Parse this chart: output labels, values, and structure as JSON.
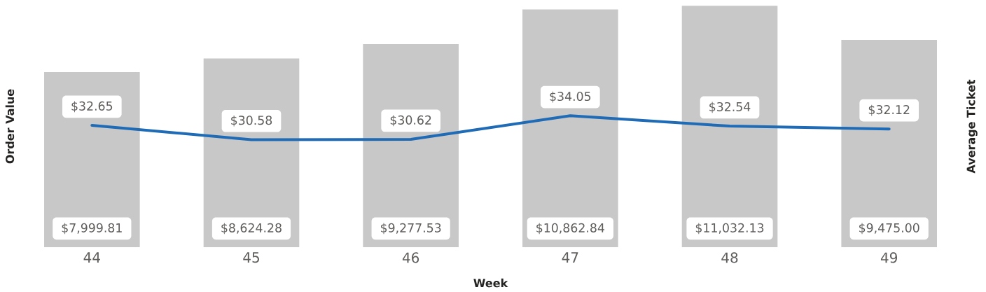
{
  "chart_data": {
    "type": "bar",
    "xlabel": "Week",
    "ylabel": "Order Value",
    "y2label": "Average Ticket",
    "categories": [
      "44",
      "45",
      "46",
      "47",
      "48",
      "49"
    ],
    "ylim": [
      0,
      11040
    ],
    "y2lim": [
      15,
      50
    ],
    "series": [
      {
        "color": "#c8c8c8",
        "values": [
          7999.81,
          8624.28,
          9277.53,
          10862.84,
          11032.13,
          9475.0
        ],
        "value_labels": [
          "$7,999.81",
          "$8,624.28",
          "$9,277.53",
          "$10,862.84",
          "$11,032.13",
          "$9,475.00"
        ]
      },
      {
        "type": "line",
        "axis": "y2",
        "color": "#1f6bb5",
        "values": [
          32.65,
          30.58,
          30.62,
          34.05,
          32.54,
          32.12
        ],
        "value_labels": [
          "$32.65",
          "$30.58",
          "$30.62",
          "$34.05",
          "$32.54",
          "$32.12"
        ]
      }
    ]
  }
}
